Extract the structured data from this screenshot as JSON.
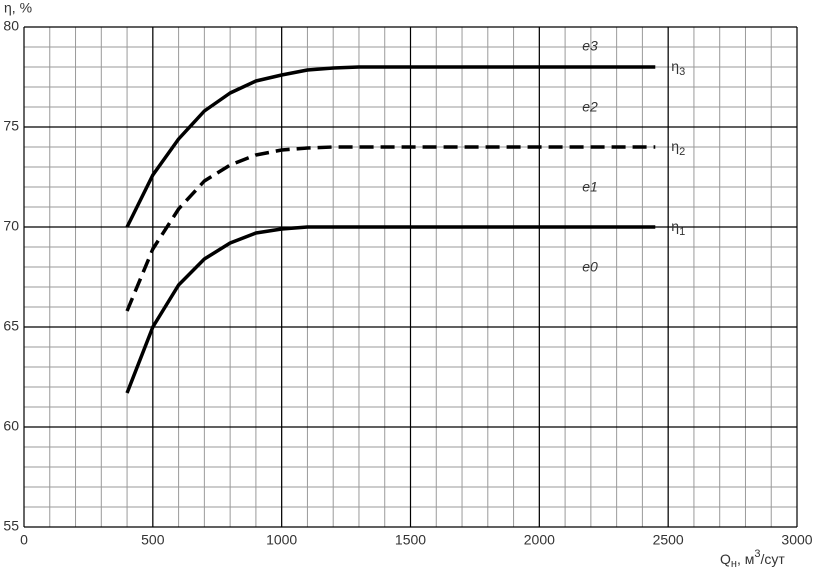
{
  "chart_data": {
    "type": "line",
    "ylabel": "η, %",
    "xlabel_parts": [
      "Q",
      "н",
      ", м",
      "3",
      "/сут"
    ],
    "xlim": [
      0,
      3000
    ],
    "xticks": [
      0,
      500,
      1000,
      1500,
      2000,
      2500,
      3000
    ],
    "ylim": [
      55,
      80
    ],
    "yticks": [
      55,
      60,
      65,
      70,
      75,
      80
    ],
    "x_minor_step": 100,
    "y_minor_step": 1,
    "grid": true,
    "series": [
      {
        "name": "η",
        "name_sub": "3",
        "color": "#000000",
        "dash": false,
        "x": [
          400,
          500,
          600,
          700,
          800,
          900,
          1000,
          1100,
          1200,
          1300,
          2450
        ],
        "values": [
          70,
          72.6,
          74.4,
          75.8,
          76.7,
          77.3,
          77.6,
          77.85,
          77.95,
          78,
          78
        ]
      },
      {
        "name": "η",
        "name_sub": "2",
        "color": "#000000",
        "dash": true,
        "x": [
          400,
          500,
          600,
          700,
          800,
          900,
          1000,
          1100,
          1200,
          2450
        ],
        "values": [
          65.8,
          68.9,
          70.9,
          72.3,
          73.1,
          73.6,
          73.85,
          73.95,
          74,
          74
        ]
      },
      {
        "name": "η",
        "name_sub": "1",
        "color": "#000000",
        "dash": false,
        "x": [
          400,
          500,
          600,
          700,
          800,
          900,
          1000,
          1100,
          2450
        ],
        "values": [
          61.7,
          65,
          67.1,
          68.4,
          69.2,
          69.7,
          69.9,
          70,
          70
        ]
      }
    ],
    "annotations": [
      "e3",
      "e2",
      "e1",
      "e0"
    ]
  }
}
